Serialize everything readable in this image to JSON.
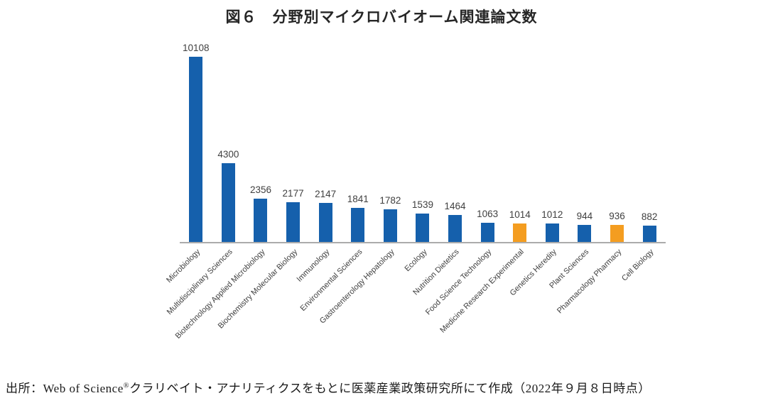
{
  "title": "図６　分野別マイクロバイオーム関連論文数",
  "source_note": {
    "prefix": "出所：Web of Science",
    "registered_mark": "®",
    "suffix": "クラリベイト・アナリティクスをもとに医薬産業政策研究所にて作成（2022年９月８日時点）"
  },
  "chart_data": {
    "type": "bar",
    "title": "図６　分野別マイクロバイオーム関連論文数",
    "categories": [
      "Microbiology",
      "Multidisciplinary Sciences",
      "Biotechnology Applied Microbiology",
      "Biochemistry Molecular Biology",
      "Immunology",
      "Environmental Sciences",
      "Gastroenterology Hepatology",
      "Ecology",
      "Nutrition Dietetics",
      "Food Science Technology",
      "Medicine Research Experimental",
      "Genetics Heredity",
      "Plant Sciences",
      "Pharmacology Pharmacy",
      "Cell Biology"
    ],
    "values": [
      10108,
      4300,
      2356,
      2177,
      2147,
      1841,
      1782,
      1539,
      1464,
      1063,
      1014,
      1012,
      944,
      936,
      882
    ],
    "highlight_indices": [
      10,
      13
    ],
    "colors": {
      "bar": "#1560AC",
      "highlight": "#F49D20",
      "axis_line": "#ABABAB",
      "value_label": "#404040",
      "category_label": "#404040"
    },
    "ylim": [
      0,
      10500
    ],
    "grid": false,
    "legend": "none",
    "value_labels": true,
    "category_label_rotation_deg": 45
  }
}
